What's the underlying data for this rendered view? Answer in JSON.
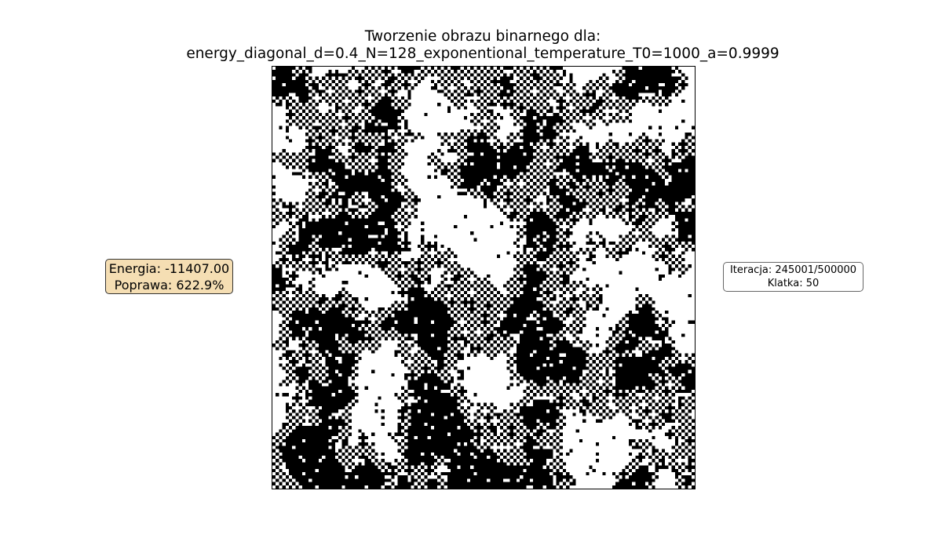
{
  "chart_data": {
    "type": "heatmap",
    "title_line1": "Tworzenie obrazu binarnego dla:",
    "title_line2": "energy_diagonal_d=0.4_N=128_exponentional_temperature_T0=1000_a=0.9999",
    "grid_size": 128,
    "values": "binary",
    "colors": {
      "zero": "#ffffff",
      "one": "#000000"
    },
    "axes_ticks": false
  },
  "energy_box": {
    "energy_text": "Energia: -11407.00",
    "improvement_text": "Poprawa: 622.9%",
    "background": "#f5deb3"
  },
  "iteration_box": {
    "iteration_text": "Iteracja: 245001/500000",
    "frame_text": "Klatka: 50"
  }
}
